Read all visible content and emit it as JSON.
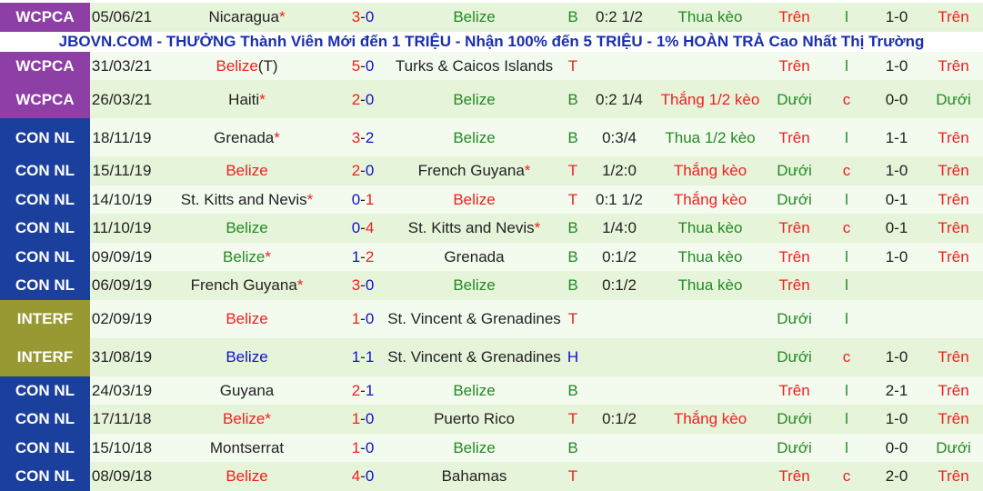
{
  "banner": "JBOVN.COM - THƯỞNG Thành Viên Mới đến 1 TRIỆU - Nhận 100% đến 5 TRIỆU - 1% HOÀN TRẢ Cao Nhất Thị Trường",
  "colors": {
    "WCPCA": "#8e3fa6",
    "CON NL": "#1b3f9c",
    "INTERF": "#999933",
    "red": "#f02020",
    "green": "#238a23",
    "blue": "#1010d0"
  },
  "matches": [
    {
      "league": "WCPCA",
      "date": "05/06/21",
      "home": "Nicaragua",
      "home_star": true,
      "home_color": "dark",
      "score": "3-0",
      "away": "Belize",
      "away_star": false,
      "away_color": "green",
      "result": "B",
      "handicap": "0:2 1/2",
      "handicap_result": "Thua kèo",
      "ou": "Trên",
      "lc": "l",
      "ht": "1-0",
      "ht_ou": "Trên"
    },
    {
      "league": "WCPCA",
      "date": "31/03/21",
      "home": "Belize",
      "home_suffix": "(T)",
      "home_star": false,
      "home_color": "red",
      "score": "5-0",
      "away": "Turks & Caicos Islands",
      "away_star": false,
      "away_color": "dark",
      "result": "T",
      "handicap": "",
      "handicap_result": "",
      "ou": "Trên",
      "lc": "l",
      "ht": "1-0",
      "ht_ou": "Trên"
    },
    {
      "league": "WCPCA",
      "date": "26/03/21",
      "home": "Haiti",
      "home_star": true,
      "home_color": "dark",
      "score": "2-0",
      "away": "Belize",
      "away_star": false,
      "away_color": "green",
      "result": "B",
      "handicap": "0:2 1/4",
      "handicap_result": "Thắng 1/2 kèo",
      "ou": "Dưới",
      "lc": "c",
      "ht": "0-0",
      "ht_ou": "Dưới",
      "tall": true
    },
    {
      "league": "CON NL",
      "date": "18/11/19",
      "home": "Grenada",
      "home_star": true,
      "home_color": "dark",
      "score": "3-2",
      "away": "Belize",
      "away_star": false,
      "away_color": "green",
      "result": "B",
      "handicap": "0:3/4",
      "handicap_result": "Thua 1/2 kèo",
      "ou": "Trên",
      "lc": "l",
      "ht": "1-1",
      "ht_ou": "Trên",
      "tall": true
    },
    {
      "league": "CON NL",
      "date": "15/11/19",
      "home": "Belize",
      "home_star": false,
      "home_color": "red",
      "score": "2-0",
      "away": "French Guyana",
      "away_star": true,
      "away_color": "dark",
      "result": "T",
      "handicap": "1/2:0",
      "handicap_result": "Thắng kèo",
      "ou": "Dưới",
      "lc": "c",
      "ht": "1-0",
      "ht_ou": "Trên"
    },
    {
      "league": "CON NL",
      "date": "14/10/19",
      "home": "St. Kitts and Nevis",
      "home_star": true,
      "home_color": "dark",
      "score": "0-1",
      "away": "Belize",
      "away_star": false,
      "away_color": "red",
      "result": "T",
      "handicap": "0:1 1/2",
      "handicap_result": "Thắng kèo",
      "ou": "Dưới",
      "lc": "l",
      "ht": "0-1",
      "ht_ou": "Trên"
    },
    {
      "league": "CON NL",
      "date": "11/10/19",
      "home": "Belize",
      "home_star": false,
      "home_color": "green",
      "score": "0-4",
      "away": "St. Kitts and Nevis",
      "away_star": true,
      "away_color": "dark",
      "result": "B",
      "handicap": "1/4:0",
      "handicap_result": "Thua kèo",
      "ou": "Trên",
      "lc": "c",
      "ht": "0-1",
      "ht_ou": "Trên"
    },
    {
      "league": "CON NL",
      "date": "09/09/19",
      "home": "Belize",
      "home_star": true,
      "home_color": "green",
      "score": "1-2",
      "away": "Grenada",
      "away_star": false,
      "away_color": "dark",
      "result": "B",
      "handicap": "0:1/2",
      "handicap_result": "Thua kèo",
      "ou": "Trên",
      "lc": "l",
      "ht": "1-0",
      "ht_ou": "Trên"
    },
    {
      "league": "CON NL",
      "date": "06/09/19",
      "home": "French Guyana",
      "home_star": true,
      "home_color": "dark",
      "score": "3-0",
      "away": "Belize",
      "away_star": false,
      "away_color": "green",
      "result": "B",
      "handicap": "0:1/2",
      "handicap_result": "Thua kèo",
      "ou": "Trên",
      "lc": "l",
      "ht": "",
      "ht_ou": ""
    },
    {
      "league": "INTERF",
      "date": "02/09/19",
      "home": "Belize",
      "home_star": false,
      "home_color": "red",
      "score": "1-0",
      "away": "St. Vincent & Grenadines",
      "away_star": false,
      "away_color": "dark",
      "result": "T",
      "handicap": "",
      "handicap_result": "",
      "ou": "Dưới",
      "lc": "l",
      "ht": "",
      "ht_ou": "",
      "tall": true
    },
    {
      "league": "INTERF",
      "date": "31/08/19",
      "home": "Belize",
      "home_star": false,
      "home_color": "blue",
      "score": "1-1",
      "away": "St. Vincent & Grenadines",
      "away_star": false,
      "away_color": "dark",
      "result": "H",
      "handicap": "",
      "handicap_result": "",
      "ou": "Dưới",
      "lc": "c",
      "ht": "1-0",
      "ht_ou": "Trên",
      "tall": true
    },
    {
      "league": "CON NL",
      "date": "24/03/19",
      "home": "Guyana",
      "home_star": false,
      "home_color": "dark",
      "score": "2-1",
      "away": "Belize",
      "away_star": false,
      "away_color": "green",
      "result": "B",
      "handicap": "",
      "handicap_result": "",
      "ou": "Trên",
      "lc": "l",
      "ht": "2-1",
      "ht_ou": "Trên"
    },
    {
      "league": "CON NL",
      "date": "17/11/18",
      "home": "Belize",
      "home_star": true,
      "home_color": "red",
      "score": "1-0",
      "away": "Puerto Rico",
      "away_star": false,
      "away_color": "dark",
      "result": "T",
      "handicap": "0:1/2",
      "handicap_result": "Thắng kèo",
      "ou": "Dưới",
      "lc": "l",
      "ht": "1-0",
      "ht_ou": "Trên"
    },
    {
      "league": "CON NL",
      "date": "15/10/18",
      "home": "Montserrat",
      "home_star": false,
      "home_color": "dark",
      "score": "1-0",
      "away": "Belize",
      "away_star": false,
      "away_color": "green",
      "result": "B",
      "handicap": "",
      "handicap_result": "",
      "ou": "Dưới",
      "lc": "l",
      "ht": "0-0",
      "ht_ou": "Dưới"
    },
    {
      "league": "CON NL",
      "date": "08/09/18",
      "home": "Belize",
      "home_star": false,
      "home_color": "red",
      "score": "4-0",
      "away": "Bahamas",
      "away_star": false,
      "away_color": "dark",
      "result": "T",
      "handicap": "",
      "handicap_result": "",
      "ou": "Trên",
      "lc": "c",
      "ht": "2-0",
      "ht_ou": "Trên"
    }
  ]
}
